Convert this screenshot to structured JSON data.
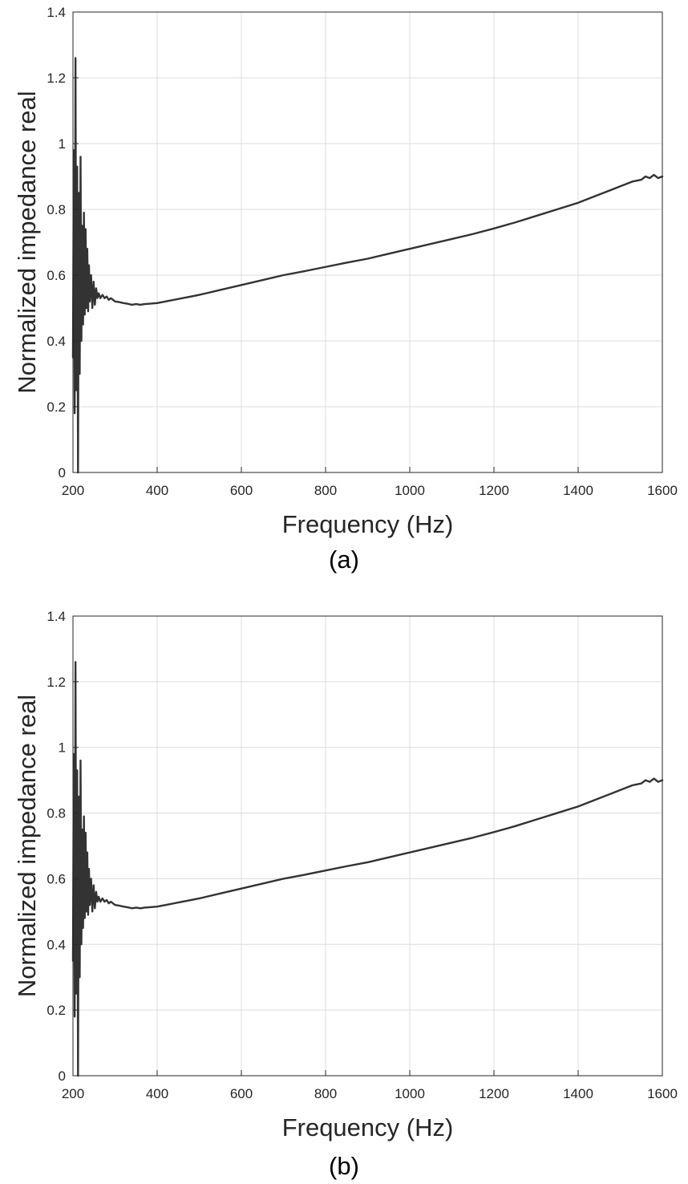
{
  "chart_data": [
    {
      "type": "line",
      "panel_label": "(a)",
      "title": "",
      "xlabel": "Frequency (Hz)",
      "ylabel": "Normalized impedance real",
      "xlim": [
        200,
        1600
      ],
      "ylim": [
        0,
        1.4
      ],
      "xticks": [
        200,
        400,
        600,
        800,
        1000,
        1200,
        1400,
        1600
      ],
      "xtick_labels": [
        "200",
        "400",
        "600",
        "800",
        "1000",
        "1200",
        "1400",
        "1600"
      ],
      "yticks": [
        0,
        0.2,
        0.4,
        0.6,
        0.8,
        1.0,
        1.2,
        1.4
      ],
      "ytick_labels": [
        "0",
        "0.2",
        "0.4",
        "0.6",
        "0.8",
        "1",
        "1.2",
        "1.4"
      ],
      "grid": true,
      "series": [
        {
          "name": "Normalized impedance real",
          "color": "#333333",
          "x": [
            200,
            202,
            204,
            206,
            208,
            210,
            212,
            214,
            216,
            218,
            220,
            222,
            224,
            226,
            228,
            230,
            232,
            234,
            236,
            238,
            240,
            243,
            246,
            249,
            252,
            255,
            258,
            261,
            265,
            270,
            275,
            280,
            285,
            290,
            300,
            310,
            320,
            330,
            340,
            350,
            360,
            370,
            380,
            400,
            420,
            440,
            460,
            480,
            500,
            550,
            600,
            650,
            700,
            750,
            800,
            850,
            900,
            950,
            1000,
            1050,
            1100,
            1150,
            1200,
            1250,
            1300,
            1350,
            1400,
            1450,
            1500,
            1530,
            1550,
            1560,
            1570,
            1580,
            1590,
            1600
          ],
          "y": [
            0.35,
            0.98,
            0.18,
            1.26,
            0.25,
            0.93,
            0.0,
            0.85,
            0.3,
            0.96,
            0.4,
            0.75,
            0.45,
            0.79,
            0.48,
            0.74,
            0.5,
            0.68,
            0.49,
            0.63,
            0.52,
            0.6,
            0.5,
            0.58,
            0.51,
            0.56,
            0.53,
            0.545,
            0.53,
            0.54,
            0.53,
            0.535,
            0.525,
            0.53,
            0.52,
            0.518,
            0.515,
            0.513,
            0.51,
            0.512,
            0.51,
            0.512,
            0.513,
            0.515,
            0.52,
            0.525,
            0.53,
            0.535,
            0.54,
            0.555,
            0.57,
            0.585,
            0.6,
            0.612,
            0.625,
            0.638,
            0.65,
            0.665,
            0.68,
            0.695,
            0.71,
            0.725,
            0.742,
            0.76,
            0.78,
            0.8,
            0.82,
            0.845,
            0.87,
            0.885,
            0.89,
            0.9,
            0.895,
            0.905,
            0.895,
            0.9
          ]
        }
      ]
    },
    {
      "type": "line",
      "panel_label": "(b)",
      "title": "",
      "xlabel": "Frequency (Hz)",
      "ylabel": "Normalized impedance real",
      "xlim": [
        200,
        1600
      ],
      "ylim": [
        0,
        1.4
      ],
      "xticks": [
        200,
        400,
        600,
        800,
        1000,
        1200,
        1400,
        1600
      ],
      "xtick_labels": [
        "200",
        "400",
        "600",
        "800",
        "1000",
        "1200",
        "1400",
        "1600"
      ],
      "yticks": [
        0,
        0.2,
        0.4,
        0.6,
        0.8,
        1.0,
        1.2,
        1.4
      ],
      "ytick_labels": [
        "0",
        "0.2",
        "0.4",
        "0.6",
        "0.8",
        "1",
        "1.2",
        "1.4"
      ],
      "grid": true,
      "series": [
        {
          "name": "Normalized impedance real",
          "color": "#333333",
          "x": [
            200,
            202,
            204,
            206,
            208,
            210,
            212,
            214,
            216,
            218,
            220,
            222,
            224,
            226,
            228,
            230,
            232,
            234,
            236,
            238,
            240,
            243,
            246,
            249,
            252,
            255,
            258,
            261,
            265,
            270,
            275,
            280,
            285,
            290,
            300,
            310,
            320,
            330,
            340,
            350,
            360,
            370,
            380,
            400,
            420,
            440,
            460,
            480,
            500,
            550,
            600,
            650,
            700,
            750,
            800,
            850,
            900,
            950,
            1000,
            1050,
            1100,
            1150,
            1200,
            1250,
            1300,
            1350,
            1400,
            1450,
            1500,
            1530,
            1550,
            1560,
            1570,
            1580,
            1590,
            1600
          ],
          "y": [
            0.35,
            0.98,
            0.18,
            1.26,
            0.25,
            0.93,
            0.0,
            0.85,
            0.3,
            0.96,
            0.4,
            0.75,
            0.45,
            0.79,
            0.48,
            0.74,
            0.5,
            0.68,
            0.49,
            0.63,
            0.52,
            0.6,
            0.5,
            0.58,
            0.51,
            0.56,
            0.53,
            0.545,
            0.53,
            0.54,
            0.53,
            0.535,
            0.525,
            0.53,
            0.52,
            0.518,
            0.515,
            0.513,
            0.51,
            0.512,
            0.51,
            0.512,
            0.513,
            0.515,
            0.52,
            0.525,
            0.53,
            0.535,
            0.54,
            0.555,
            0.57,
            0.585,
            0.6,
            0.612,
            0.625,
            0.638,
            0.65,
            0.665,
            0.68,
            0.695,
            0.71,
            0.725,
            0.742,
            0.76,
            0.78,
            0.8,
            0.82,
            0.845,
            0.87,
            0.885,
            0.89,
            0.9,
            0.895,
            0.905,
            0.895,
            0.9
          ]
        }
      ]
    }
  ]
}
